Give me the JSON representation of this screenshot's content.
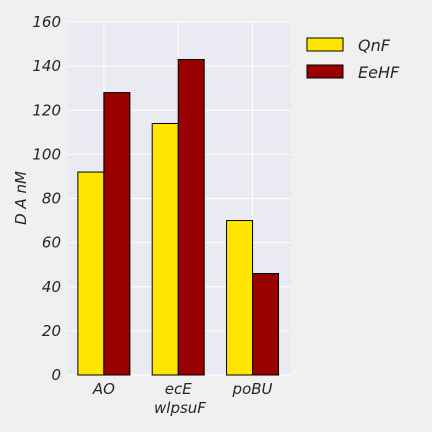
{
  "chart_data": {
    "type": "bar",
    "categories": [
      "AO",
      "ecE",
      "poBU"
    ],
    "series": [
      {
        "name": "QnF",
        "values": [
          92,
          114,
          70
        ],
        "color": "#ffe600"
      },
      {
        "name": "EeHF",
        "values": [
          128,
          143,
          46
        ],
        "color": "#990000"
      }
    ],
    "title": "",
    "xlabel": "wlpsuF",
    "ylabel": "D A nM",
    "ylim": [
      0,
      160
    ],
    "yticks": [
      0,
      20,
      40,
      60,
      80,
      100,
      120,
      140,
      160
    ],
    "grid": true,
    "legend_position": "top-right",
    "colors": {
      "plot_background": "#eaeaf2",
      "page_background": "#f0f0f0",
      "grid": "#ffffff",
      "bar_edge": "#000000"
    }
  }
}
